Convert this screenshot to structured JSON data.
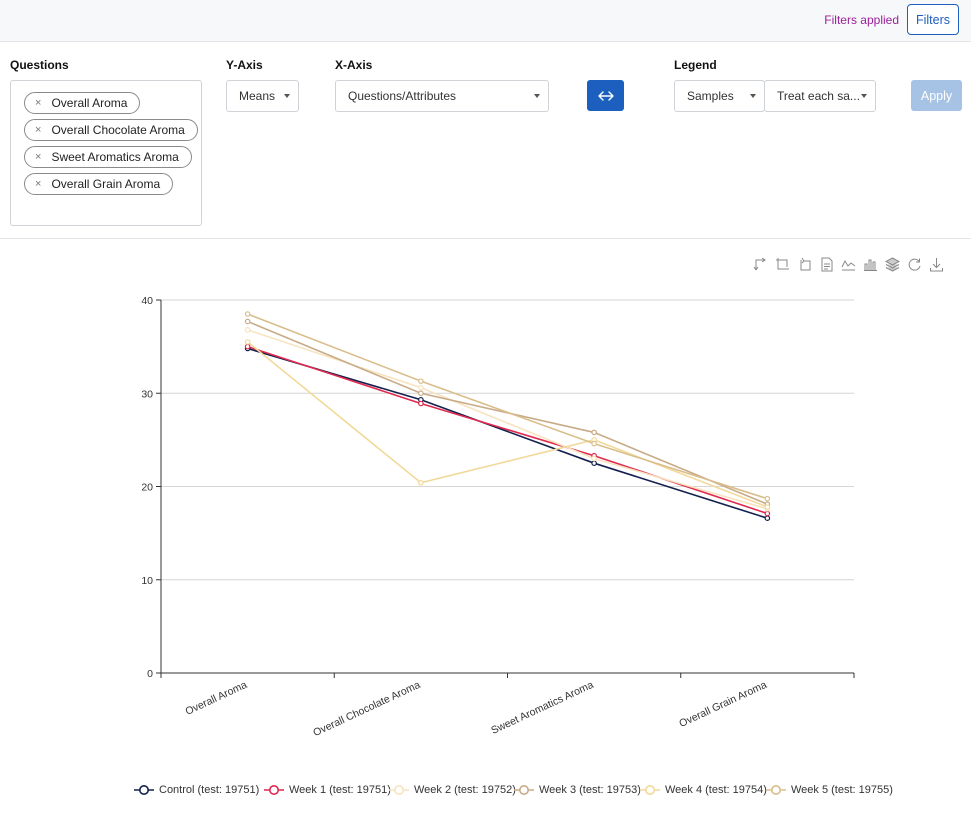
{
  "header": {
    "filters_applied": "Filters applied",
    "filters_button": "Filters"
  },
  "controls": {
    "questions_label": "Questions",
    "questions": [
      "Overall Aroma",
      "Overall Chocolate Aroma",
      "Sweet Aromatics Aroma",
      "Overall Grain Aroma"
    ],
    "yaxis_label": "Y-Axis",
    "yaxis_value": "Means",
    "xaxis_label": "X-Axis",
    "xaxis_value": "Questions/Attributes",
    "legend_label": "Legend",
    "legend_value": "Samples",
    "treat_value": "Treat each sa...",
    "apply_label": "Apply",
    "remove_symbol": "×"
  },
  "toolbox_icons": [
    "swap-axes-icon",
    "crop-icon",
    "crop-reset-icon",
    "data-view-icon",
    "line-chart-icon",
    "bar-chart-icon",
    "stack-icon",
    "restore-icon",
    "download-icon"
  ],
  "chart_data": {
    "type": "line",
    "categories": [
      "Overall Aroma",
      "Overall Chocolate Aroma",
      "Sweet Aromatics Aroma",
      "Overall Grain Aroma"
    ],
    "ylim": [
      0,
      40
    ],
    "yticks": [
      "0",
      "10",
      "20",
      "30",
      "40"
    ],
    "grid": true,
    "legend_position": "bottom",
    "series": [
      {
        "name": "Control (test: 19751)",
        "color": "#14204d",
        "values": [
          34.8,
          29.3,
          22.5,
          16.6
        ]
      },
      {
        "name": "Week 1 (test: 19751)",
        "color": "#e0294f",
        "values": [
          35.0,
          28.9,
          23.3,
          17.1
        ]
      },
      {
        "name": "Week 2 (test: 19752)",
        "color": "#f7e3bf",
        "values": [
          36.8,
          30.6,
          23.0,
          17.6
        ]
      },
      {
        "name": "Week 3 (test: 19753)",
        "color": "#c9ab88",
        "values": [
          37.7,
          30.0,
          25.8,
          18.1
        ]
      },
      {
        "name": "Week 4 (test: 19754)",
        "color": "#f2d999",
        "values": [
          35.5,
          20.4,
          25.0,
          17.8
        ]
      },
      {
        "name": "Week 5 (test: 19755)",
        "color": "#d9be8c",
        "values": [
          38.5,
          31.3,
          24.6,
          18.7
        ]
      }
    ]
  }
}
